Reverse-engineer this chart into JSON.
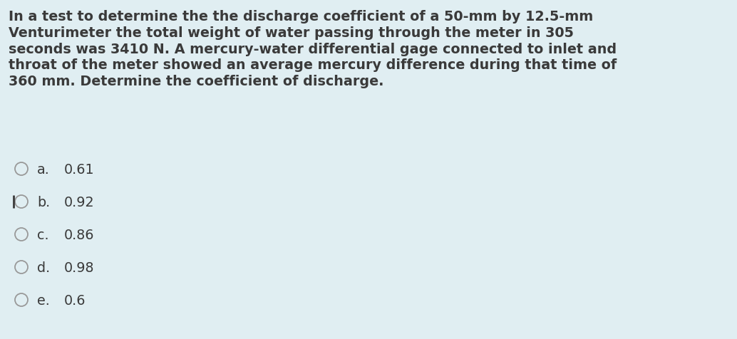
{
  "background_color": "#e0eef2",
  "question_text": "In a test to determine the the discharge coefficient of a 50-mm by 12.5-mm\nVenturimeter the total weight of water passing through the meter in 305\nseconds was 3410 N. A mercury-water differential gage connected to inlet and\nthroat of the meter showed an average mercury difference during that time of\n360 mm. Determine the coefficient of discharge.",
  "options": [
    {
      "label": "a.",
      "value": "0.61",
      "selected": false
    },
    {
      "label": "b.",
      "value": "0.92",
      "selected": true
    },
    {
      "label": "c.",
      "value": "0.86",
      "selected": false
    },
    {
      "label": "d.",
      "value": "0.98",
      "selected": false
    },
    {
      "label": "e.",
      "value": "0.6",
      "selected": false
    }
  ],
  "question_font_size": 13.8,
  "option_font_size": 13.8,
  "text_color": "#3a3a3a",
  "circle_edge_color": "#999999",
  "fig_width": 10.34,
  "fig_height": 4.77,
  "dpi": 100
}
